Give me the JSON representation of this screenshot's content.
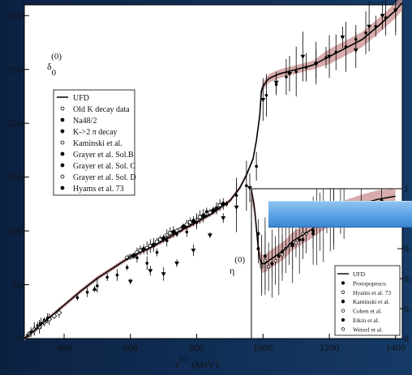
{
  "chart_data": [
    {
      "type": "scatter",
      "title": "δ0(0)",
      "title_symbol": "δ",
      "title_sub": "0",
      "title_sup": "(0)",
      "xlabel_base": "s",
      "xlabel_sup": "1/2",
      "xlabel_unit": "(MeV)",
      "xlim": [
        280,
        1420
      ],
      "ylim": [
        0,
        310
      ],
      "xticks": [
        "400",
        "600",
        "800",
        "1000",
        "1200",
        "1400"
      ],
      "yticks": [
        "0",
        "50",
        "100",
        "150",
        "200",
        "250",
        "300"
      ],
      "grid": false,
      "legend_position": "upper-left",
      "legend": [
        "UFD",
        "Old K decay data",
        "Na48/2",
        "K->2 π  decay",
        "Kaminski et al.",
        "Grayer et al. Sol.B",
        "Grayer et al. Sol. C",
        "Grayer et al. Sol. D",
        "Hyams et al. 73"
      ],
      "series": [
        {
          "name": "UFD",
          "x": [
            280,
            300,
            350,
            400,
            450,
            500,
            550,
            600,
            650,
            700,
            750,
            800,
            850,
            900,
            930,
            950,
            970,
            980,
            990,
            995,
            1000,
            1010,
            1020,
            1050,
            1100,
            1150,
            1200,
            1250,
            1300,
            1350,
            1400,
            1420
          ],
          "y": [
            0,
            5,
            18,
            31,
            44,
            56,
            66,
            76,
            83,
            91,
            100,
            108,
            117,
            128,
            140,
            152,
            167,
            184,
            207,
            230,
            234,
            239,
            242,
            246,
            250,
            254,
            262,
            270,
            278,
            291,
            305,
            312
          ]
        },
        {
          "name": "Old K decay data",
          "x": [
            290,
            300,
            310,
            320,
            330,
            340,
            350
          ],
          "y": [
            3,
            6,
            9,
            12,
            14,
            17,
            19
          ]
        },
        {
          "name": "Na48/2",
          "x": [
            295,
            310,
            325,
            340,
            355,
            370,
            385
          ],
          "y": [
            4,
            8,
            11,
            15,
            18,
            21,
            24
          ]
        },
        {
          "name": "K->2 π  decay",
          "x": [
            492
          ],
          "y": [
            46
          ]
        },
        {
          "name": "Kaminski et al.",
          "x": [
            600,
            660,
            700,
            740,
            790,
            840,
            880,
            920,
            960,
            1000,
            1040,
            1080,
            1120,
            1160,
            1200,
            1240,
            1280,
            1320,
            1360,
            1400
          ],
          "y": [
            53,
            63,
            60,
            70,
            82,
            96,
            112,
            122,
            140,
            222,
            238,
            246,
            262,
            255,
            262,
            280,
            268,
            290,
            300,
            305
          ]
        },
        {
          "name": "Grayer et al. Sol.B",
          "x": [
            590,
            620,
            650,
            680,
            710,
            740,
            770,
            800,
            830,
            860
          ],
          "y": [
            75,
            80,
            84,
            90,
            96,
            100,
            106,
            110,
            116,
            121
          ]
        },
        {
          "name": "Grayer et al. Sol. C",
          "x": [
            600,
            630,
            660,
            690,
            720,
            750,
            780,
            810,
            840,
            870
          ],
          "y": [
            76,
            82,
            86,
            92,
            98,
            101,
            108,
            113,
            117,
            124
          ]
        },
        {
          "name": "Grayer et al. Sol. D",
          "x": [
            610,
            640,
            670,
            700,
            730,
            760,
            790,
            820,
            850,
            880
          ],
          "y": [
            77,
            83,
            87,
            93,
            99,
            104,
            109,
            114,
            119,
            125
          ]
        },
        {
          "name": "Hyams et al. 73",
          "x": [
            440,
            470,
            500,
            530,
            560,
            590,
            620,
            650,
            680,
            710,
            740,
            770,
            800,
            830,
            860,
            890,
            920,
            950,
            980,
            1010,
            1040,
            1070,
            1100,
            1130,
            1160,
            1190,
            1220,
            1250,
            1280,
            1310,
            1340,
            1370,
            1400
          ],
          "y": [
            38,
            43,
            49,
            57,
            59,
            66,
            75,
            70,
            80,
            91,
            97,
            99,
            108,
            118,
            121,
            125,
            133,
            142,
            160,
            226,
            236,
            243,
            248,
            252,
            256,
            261,
            266,
            271,
            278,
            284,
            290,
            298,
            305
          ]
        }
      ]
    },
    {
      "type": "line",
      "title": "η(0)",
      "title_symbol": "η",
      "title_sup": "(0)",
      "xlim": [
        980,
        1420
      ],
      "ylim": [
        0,
        1
      ],
      "yticks_right": [
        "0",
        "0.2",
        "0.4",
        "0.6",
        "1"
      ],
      "legend_position": "lower-right",
      "legend": [
        "UFD",
        "Protopopescu",
        "Hyams et al. 73",
        "Kaminski et al.",
        "Cohen et al.",
        "Etkin et al.",
        "Wetzel et al."
      ],
      "series": [
        {
          "name": "UFD",
          "x": [
            980,
            990,
            1000,
            1005,
            1010,
            1020,
            1030,
            1050,
            1080,
            1100,
            1150,
            1200,
            1250,
            1300,
            1350,
            1400
          ],
          "y": [
            1,
            0.85,
            0.6,
            0.53,
            0.5,
            0.5,
            0.52,
            0.55,
            0.6,
            0.65,
            0.72,
            0.8,
            0.86,
            0.9,
            0.93,
            0.95
          ]
        },
        {
          "name": "Protopopescu",
          "x": [
            1000,
            1020,
            1040,
            1070,
            1100,
            1130,
            1160,
            1190,
            1220,
            1250
          ],
          "y": [
            0.7,
            0.55,
            0.5,
            0.58,
            0.62,
            0.66,
            0.7,
            0.77,
            0.82,
            0.86
          ]
        },
        {
          "name": "Hyams et al. 73",
          "x": [
            1010,
            1050,
            1090,
            1130,
            1170,
            1210
          ],
          "y": [
            0.48,
            0.52,
            0.62,
            0.7,
            0.75,
            0.81
          ]
        },
        {
          "name": "Kaminski et al.",
          "x": [
            1000,
            1060,
            1120,
            1180,
            1240,
            1300,
            1360
          ],
          "y": [
            0.6,
            0.55,
            0.66,
            0.78,
            0.86,
            0.9,
            0.92
          ]
        },
        {
          "name": "Cohen et al.",
          "x": [
            1020,
            1080,
            1140,
            1200
          ],
          "y": [
            0.52,
            0.6,
            0.7,
            0.8
          ]
        },
        {
          "name": "Etkin et al.",
          "x": [
            1040,
            1100,
            1160,
            1220
          ],
          "y": [
            0.5,
            0.63,
            0.72,
            0.82
          ]
        },
        {
          "name": "Wetzel et al.",
          "x": [
            1010,
            1030,
            1070,
            1110
          ],
          "y": [
            0.5,
            0.48,
            0.56,
            0.64
          ]
        }
      ]
    }
  ]
}
